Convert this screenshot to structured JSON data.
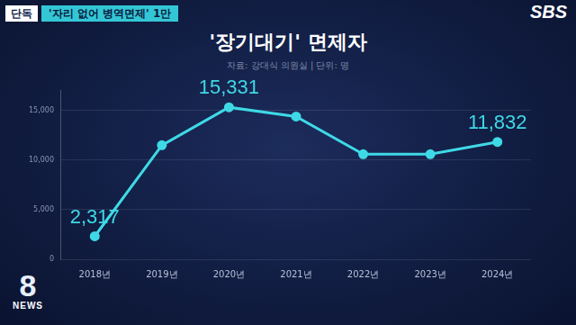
{
  "header": {
    "badge": "단독",
    "headline": "'자리 없어 병역면제' 1만",
    "logo": "SBS",
    "program_number": "8",
    "program_name": "NEWS"
  },
  "chart_data": {
    "type": "line",
    "title": "'장기대기' 면제자",
    "subtitle": "자료: 강대식 의원실 | 단위: 명",
    "categories": [
      "2018년",
      "2019년",
      "2020년",
      "2021년",
      "2022년",
      "2023년",
      "2024년"
    ],
    "values": [
      2317,
      11500,
      15331,
      14400,
      10600,
      10600,
      11832
    ],
    "value_labels": [
      "2,317",
      null,
      "15,331",
      null,
      null,
      null,
      "11,832"
    ],
    "data_labels": true,
    "color": "#3fd9e6",
    "marker": "circle",
    "ylim": [
      0,
      17000
    ],
    "yticks": [
      0,
      {
        "value": 5000,
        "label": "5,000"
      },
      {
        "value": 10000,
        "label": "10,000"
      },
      {
        "value": 15000,
        "label": "15,000"
      }
    ],
    "grid": true
  }
}
